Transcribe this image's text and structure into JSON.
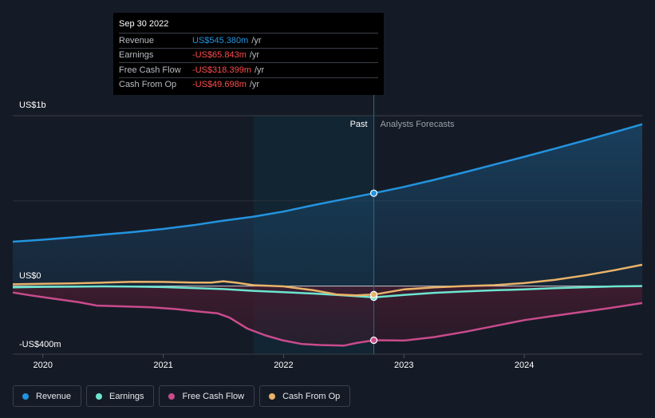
{
  "tooltip": {
    "date": "Sep 30 2022",
    "rows": [
      {
        "label": "Revenue",
        "value": "US$545.380m",
        "unit": "/yr",
        "color": "#2394df"
      },
      {
        "label": "Earnings",
        "value": "-US$65.843m",
        "unit": "/yr",
        "color": "#ff4b4b"
      },
      {
        "label": "Free Cash Flow",
        "value": "-US$318.399m",
        "unit": "/yr",
        "color": "#ff4b4b"
      },
      {
        "label": "Cash From Op",
        "value": "-US$49.698m",
        "unit": "/yr",
        "color": "#ff4b4b"
      }
    ]
  },
  "axis": {
    "y_top": "US$1b",
    "y_zero": "US$0",
    "y_bottom": "-US$400m"
  },
  "sections": {
    "past": "Past",
    "forecast": "Analysts Forecasts"
  },
  "legend": [
    {
      "label": "Revenue",
      "color": "#2394df"
    },
    {
      "label": "Earnings",
      "color": "#6ce5d0"
    },
    {
      "label": "Free Cash Flow",
      "color": "#c94b8c"
    },
    {
      "label": "Cash From Op",
      "color": "#e9b368"
    }
  ],
  "chart_data": {
    "type": "line",
    "x_ticks": [
      2020,
      2021,
      2022,
      2023,
      2024
    ],
    "xlim": [
      2019.75,
      2024.98
    ],
    "ylim": [
      -400,
      1000
    ],
    "past_end": 2022.75,
    "highlight_start": 2021.75,
    "series": [
      {
        "name": "Revenue",
        "color": "#2394df",
        "x": [
          2019.75,
          2020.0,
          2020.25,
          2020.5,
          2020.75,
          2021.0,
          2021.25,
          2021.5,
          2021.75,
          2022.0,
          2022.25,
          2022.5,
          2022.75,
          2023.0,
          2023.25,
          2023.5,
          2023.75,
          2024.0,
          2024.25,
          2024.5,
          2024.75,
          2024.98
        ],
        "y": [
          260,
          272,
          286,
          302,
          317,
          335,
          357,
          384,
          407,
          437,
          475,
          510,
          545,
          582,
          623,
          667,
          713,
          759,
          806,
          854,
          903,
          950
        ]
      },
      {
        "name": "Earnings",
        "color": "#6ce5d0",
        "x": [
          2019.75,
          2020.0,
          2020.25,
          2020.5,
          2020.75,
          2021.0,
          2021.25,
          2021.5,
          2021.75,
          2022.0,
          2022.25,
          2022.5,
          2022.75,
          2023.0,
          2023.25,
          2023.5,
          2023.75,
          2024.0,
          2024.25,
          2024.5,
          2024.75,
          2024.98
        ],
        "y": [
          -8,
          -5,
          -4,
          -2,
          -3,
          -6,
          -12,
          -18,
          -28,
          -36,
          -44,
          -55,
          -66,
          -52,
          -40,
          -32,
          -25,
          -20,
          -13,
          -7,
          -2,
          0
        ]
      },
      {
        "name": "Free Cash Flow",
        "color": "#c94b8c",
        "x": [
          2019.75,
          2019.9,
          2020.1,
          2020.3,
          2020.45,
          2020.7,
          2020.9,
          2021.1,
          2021.3,
          2021.45,
          2021.55,
          2021.7,
          2021.85,
          2022.0,
          2022.15,
          2022.3,
          2022.5,
          2022.6,
          2022.75,
          2023.0,
          2023.25,
          2023.5,
          2023.75,
          2024.0,
          2024.25,
          2024.5,
          2024.75,
          2024.98
        ],
        "y": [
          -38,
          -55,
          -75,
          -95,
          -115,
          -120,
          -125,
          -135,
          -150,
          -160,
          -185,
          -250,
          -290,
          -320,
          -340,
          -346,
          -350,
          -335,
          -318,
          -320,
          -300,
          -270,
          -235,
          -200,
          -175,
          -150,
          -125,
          -100
        ]
      },
      {
        "name": "Cash From Op",
        "color": "#e9b368",
        "x": [
          2019.75,
          2020.0,
          2020.25,
          2020.5,
          2020.75,
          2021.0,
          2021.25,
          2021.4,
          2021.5,
          2021.6,
          2021.75,
          2022.0,
          2022.25,
          2022.45,
          2022.6,
          2022.75,
          2023.0,
          2023.25,
          2023.5,
          2023.75,
          2024.0,
          2024.25,
          2024.5,
          2024.75,
          2024.98
        ],
        "y": [
          10,
          13,
          16,
          20,
          25,
          24,
          20,
          20,
          28,
          20,
          5,
          -2,
          -25,
          -50,
          -55,
          -50,
          -20,
          -8,
          0,
          5,
          17,
          36,
          62,
          93,
          125
        ]
      }
    ]
  }
}
